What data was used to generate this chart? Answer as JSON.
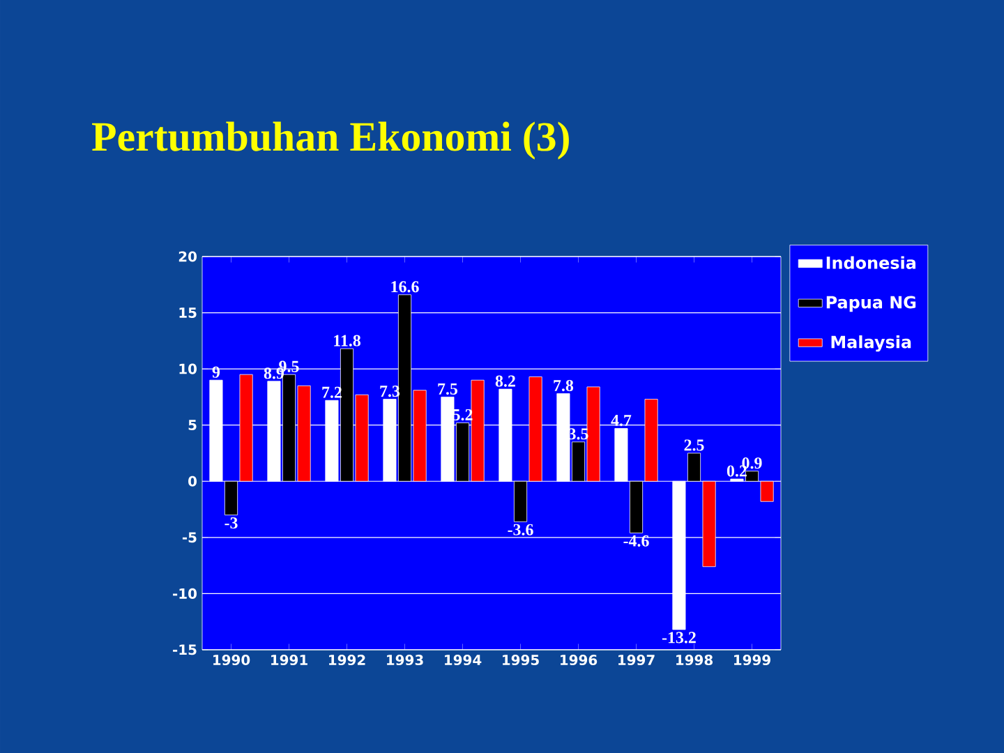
{
  "chart_data": {
    "type": "bar",
    "title": "Pertumbuhan Ekonomi (3)",
    "categories": [
      "1990",
      "1991",
      "1992",
      "1993",
      "1994",
      "1995",
      "1996",
      "1997",
      "1998",
      "1999"
    ],
    "series": [
      {
        "name": "Indonesia",
        "color": "#ffffff",
        "values": [
          9.0,
          8.9,
          7.2,
          7.3,
          7.5,
          8.2,
          7.8,
          4.7,
          -13.2,
          0.2
        ],
        "value_labels": [
          "9",
          "8.9",
          "7.2",
          "7.3",
          "7.5",
          "8.2",
          "7.8",
          "4.7",
          "-13.2",
          "0.2"
        ]
      },
      {
        "name": "Papua NG",
        "color": "#000000",
        "values": [
          -3.0,
          9.5,
          11.8,
          16.6,
          5.2,
          -3.6,
          3.5,
          -4.6,
          2.5,
          0.9
        ],
        "value_labels": [
          "-3",
          "9.5",
          "11.8",
          "16.6",
          "5.2",
          "-3.6",
          "3.5",
          "-4.6",
          "2.5",
          "0.9"
        ]
      },
      {
        "name": "Malaysia",
        "color": "#ff0000",
        "values": [
          9.5,
          8.5,
          7.7,
          8.1,
          9.0,
          9.3,
          8.4,
          7.3,
          -7.6,
          -1.8
        ]
      }
    ],
    "ylim": [
      -15,
      20
    ],
    "yticks": [
      -15,
      -10,
      -5,
      0,
      5,
      10,
      15,
      20
    ],
    "grid": "y",
    "legend": "right"
  }
}
